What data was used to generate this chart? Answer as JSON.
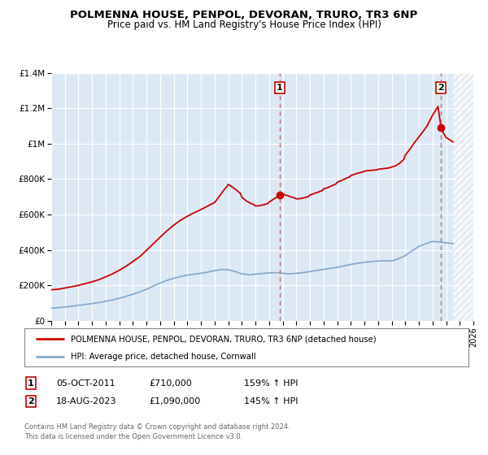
{
  "title": "POLMENNA HOUSE, PENPOL, DEVORAN, TRURO, TR3 6NP",
  "subtitle": "Price paid vs. HM Land Registry's House Price Index (HPI)",
  "legend_line1": "POLMENNA HOUSE, PENPOL, DEVORAN, TRURO, TR3 6NP (detached house)",
  "legend_line2": "HPI: Average price, detached house, Cornwall",
  "footnote1": "Contains HM Land Registry data © Crown copyright and database right 2024.",
  "footnote2": "This data is licensed under the Open Government Licence v3.0.",
  "sale1_label": "1",
  "sale1_date": "05-OCT-2011",
  "sale1_price": "£710,000",
  "sale1_hpi": "159% ↑ HPI",
  "sale2_label": "2",
  "sale2_date": "18-AUG-2023",
  "sale2_price": "£1,090,000",
  "sale2_hpi": "145% ↑ HPI",
  "sale1_year": 2011.77,
  "sale1_value": 710000,
  "sale2_year": 2023.63,
  "sale2_value": 1090000,
  "house_color": "#cc0000",
  "hpi_color": "#88aacc",
  "background_color": "#dce9f5",
  "plot_bg": "#dce9f5",
  "dashed_line_color": "#cc6666",
  "hatch_color": "#bbbbbb",
  "hatch_start": 2024.5,
  "ylim": [
    0,
    1400000
  ],
  "xlim": [
    1995,
    2026
  ],
  "yticks": [
    0,
    200000,
    400000,
    600000,
    800000,
    1000000,
    1200000,
    1400000
  ],
  "ytick_labels": [
    "£0",
    "£200K",
    "£400K",
    "£600K",
    "£800K",
    "£1M",
    "£1.2M",
    "£1.4M"
  ],
  "xticks": [
    1995,
    1996,
    1997,
    1998,
    1999,
    2000,
    2001,
    2002,
    2003,
    2004,
    2005,
    2006,
    2007,
    2008,
    2009,
    2010,
    2011,
    2012,
    2013,
    2014,
    2015,
    2016,
    2017,
    2018,
    2019,
    2020,
    2021,
    2022,
    2023,
    2024,
    2025,
    2026
  ]
}
